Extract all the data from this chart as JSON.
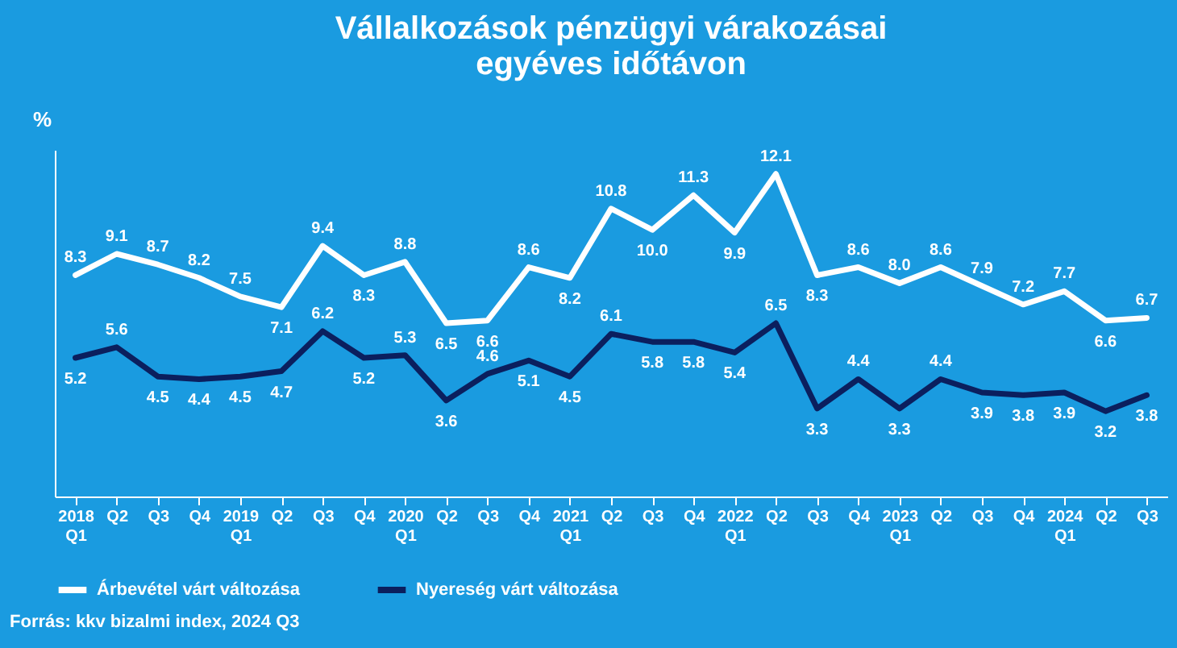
{
  "chart_data": {
    "type": "line",
    "title": "Vállalkozások pénzügyi várakozásai egyéves időtávon",
    "ylabel": "%",
    "categories": [
      "2018 Q1",
      "Q2",
      "Q3",
      "Q4",
      "2019 Q1",
      "Q2",
      "Q3",
      "Q4",
      "2020 Q1",
      "Q2",
      "Q3",
      "Q4",
      "2021 Q1",
      "Q2",
      "Q3",
      "Q4",
      "2022 Q1",
      "Q2",
      "Q3",
      "Q4",
      "2023 Q1",
      "Q2",
      "Q3",
      "Q4",
      "2024 Q1",
      "Q2",
      "Q3"
    ],
    "series": [
      {
        "name": "Árbevétel várt változása",
        "color": "#ffffff",
        "values": [
          8.3,
          9.1,
          8.7,
          8.2,
          7.5,
          7.1,
          9.4,
          8.3,
          8.8,
          6.5,
          6.6,
          8.6,
          8.2,
          10.8,
          10.0,
          11.3,
          9.9,
          12.1,
          8.3,
          8.6,
          8.0,
          8.6,
          7.9,
          7.2,
          7.7,
          6.6,
          6.7
        ],
        "value_labels": [
          "8.3",
          "9.1",
          "8.7",
          "8.2",
          "7.5",
          "7.1",
          "9.4",
          "8.3",
          "8.8",
          "6.5",
          "6.6",
          "8.6",
          "8.2",
          "10.8",
          "10.0",
          "11.3",
          "9.9",
          "12.1",
          "8.3",
          "8.6",
          "8.0",
          "8.6",
          "7.9",
          "7.2",
          "7.7",
          "6.6",
          "6.7"
        ]
      },
      {
        "name": "Nyereség várt változása",
        "color": "#0b1f5e",
        "values": [
          5.2,
          5.6,
          4.5,
          4.4,
          4.5,
          4.7,
          6.2,
          5.2,
          5.3,
          3.6,
          4.6,
          5.1,
          4.5,
          6.1,
          5.8,
          5.8,
          5.4,
          6.5,
          3.3,
          4.4,
          3.3,
          4.4,
          3.9,
          3.8,
          3.9,
          3.2,
          3.8
        ],
        "value_labels": [
          "5.2",
          "5.6",
          "4.5",
          "4.4",
          "4.5",
          "4.7",
          "6.2",
          "5.2",
          "5.3",
          "3.6",
          "4.6",
          "5.1",
          "4.5",
          "6.1",
          "5.8",
          "5.8",
          "5.4",
          "6.5",
          "3.3",
          "4.4",
          "3.3",
          "4.4",
          "3.9",
          "3.8",
          "3.9",
          "3.2",
          "3.8"
        ]
      }
    ],
    "relative": false,
    "grid": false,
    "legend": "bottom",
    "marker": "none",
    "line_style": "solid",
    "annotations": [
      "Forrás: kkv bizalmi index, 2024 Q3"
    ]
  }
}
